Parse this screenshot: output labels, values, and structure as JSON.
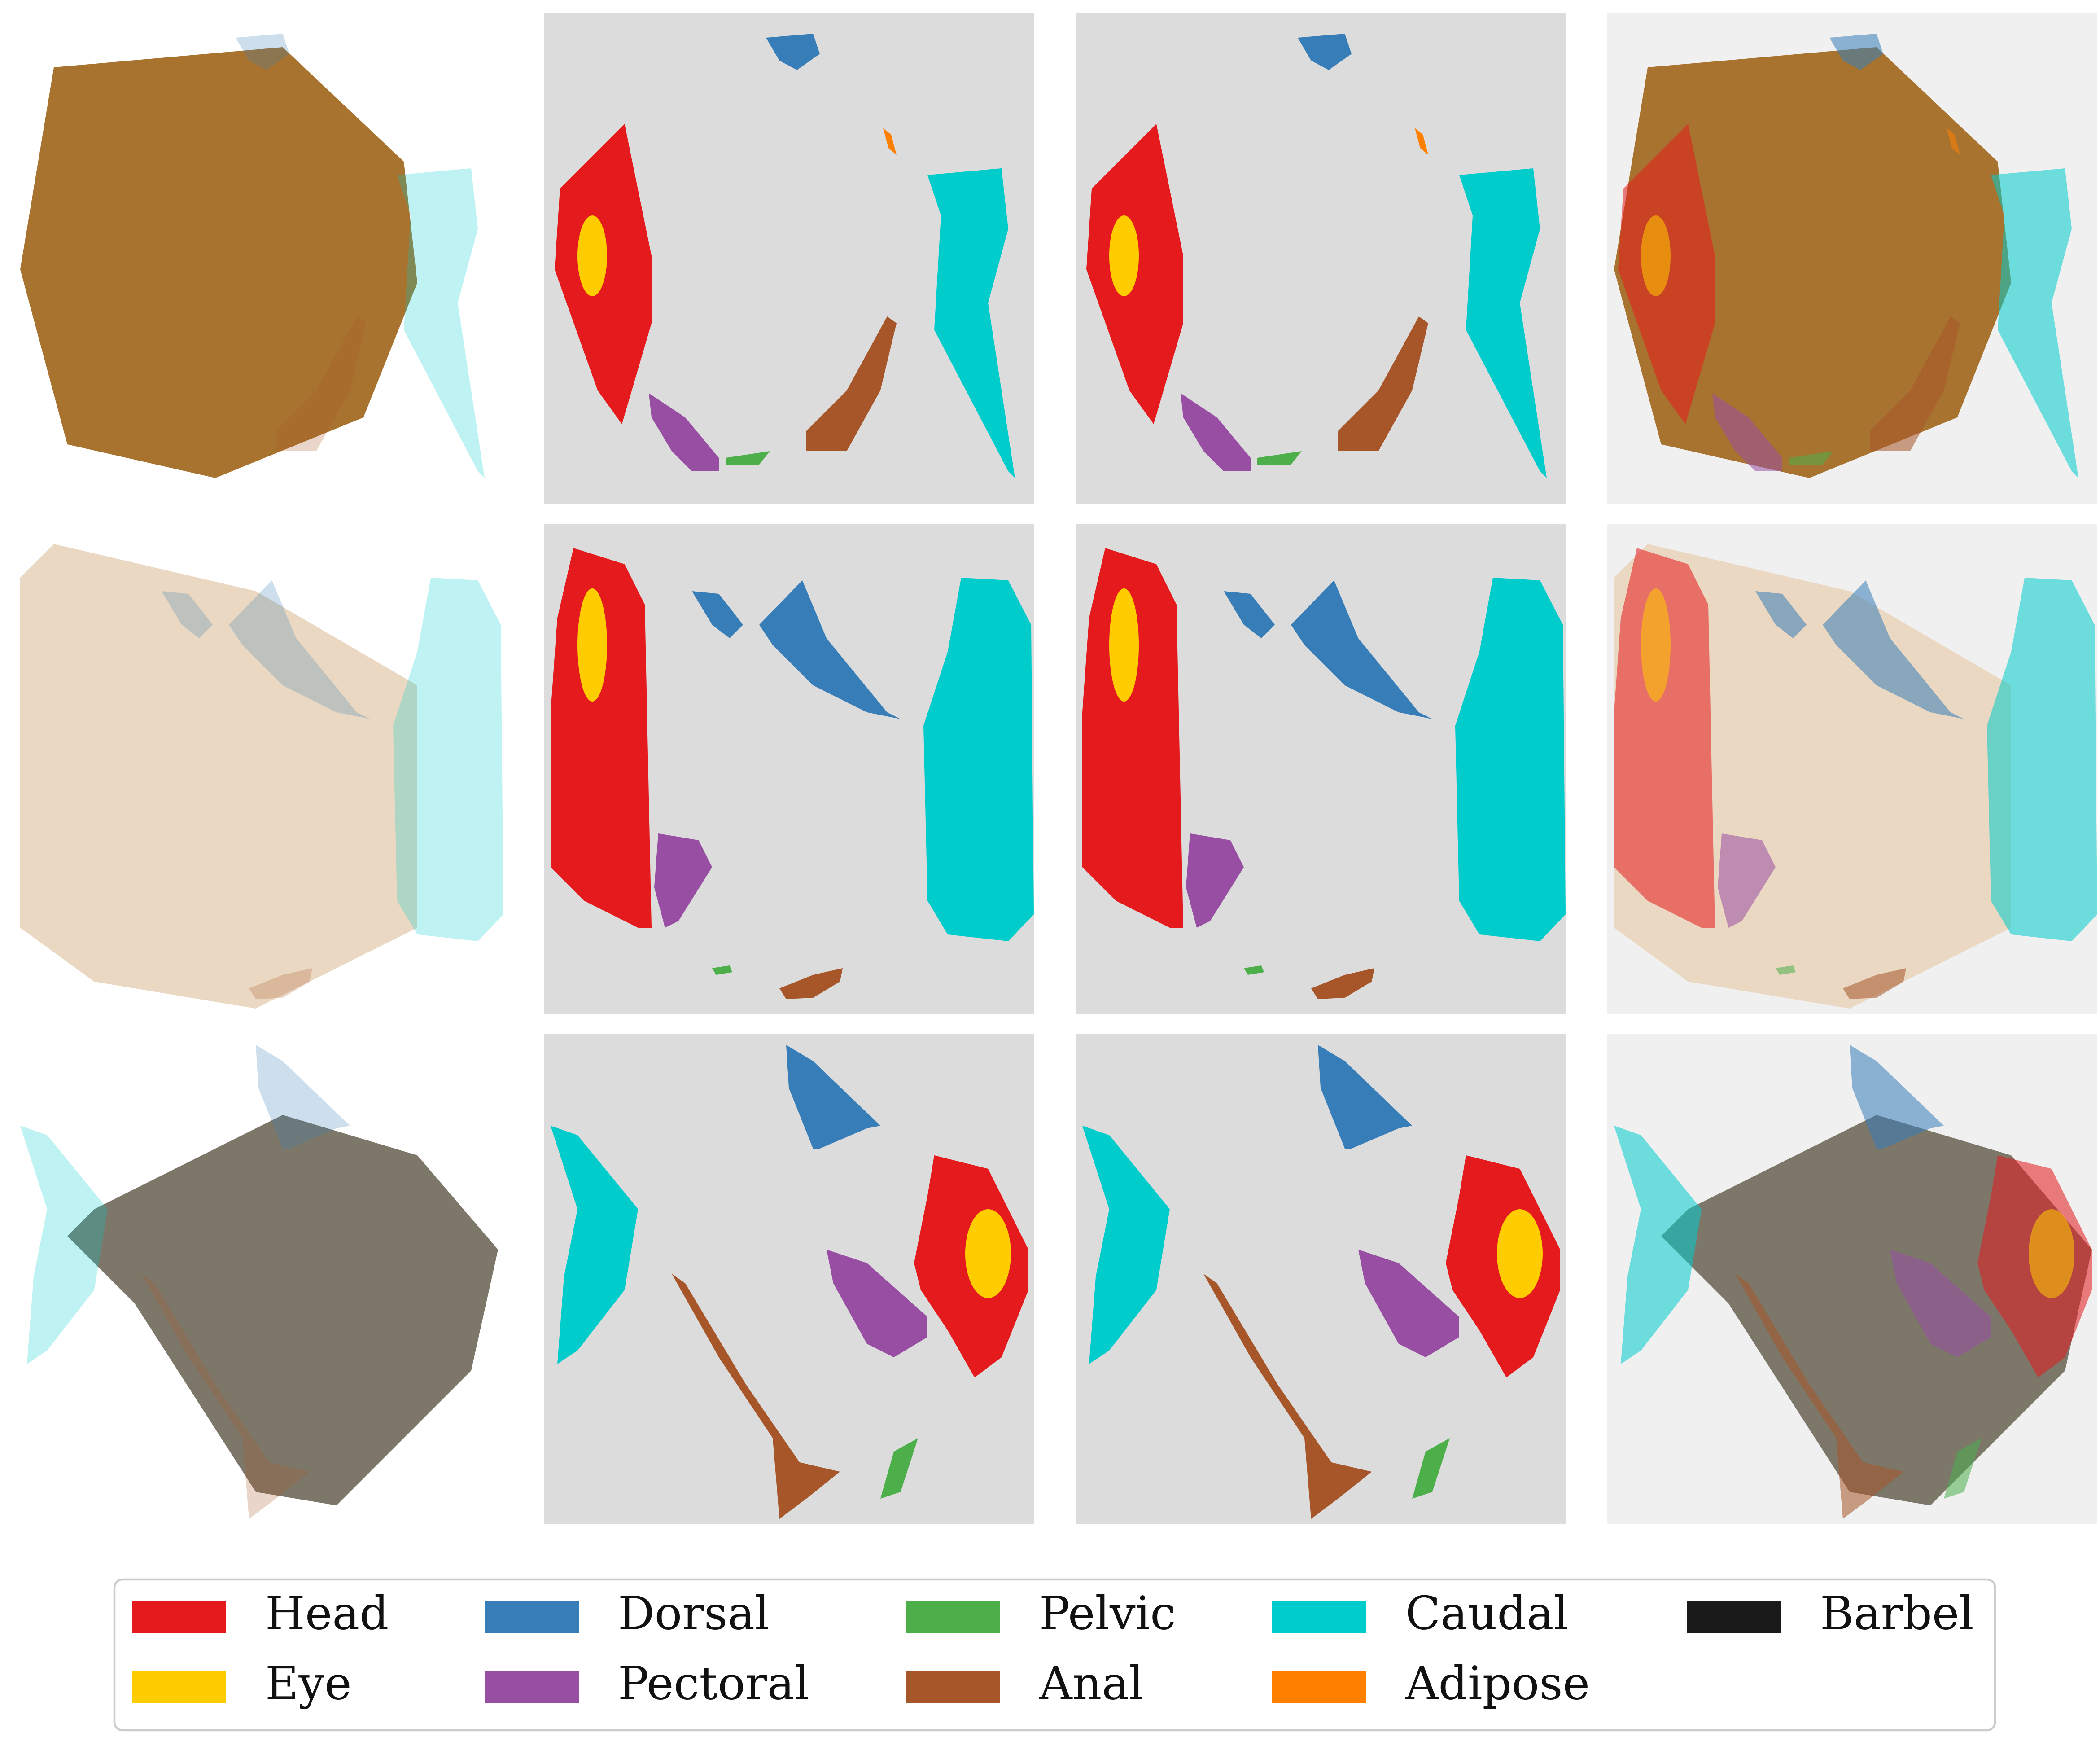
{
  "legend": {
    "items": [
      {
        "label": "Head",
        "color": "#e41a1c"
      },
      {
        "label": "Eye",
        "color": "#ffcc00"
      },
      {
        "label": "Dorsal",
        "color": "#377eb8"
      },
      {
        "label": "Pectoral",
        "color": "#984ea3"
      },
      {
        "label": "Pelvic",
        "color": "#4daf4a"
      },
      {
        "label": "Anal",
        "color": "#a65628"
      },
      {
        "label": "Caudal",
        "color": "#00cccc"
      },
      {
        "label": "Adipose",
        "color": "#ff7f00"
      },
      {
        "label": "Barbel",
        "color": "#1a1a1a"
      }
    ]
  }
}
